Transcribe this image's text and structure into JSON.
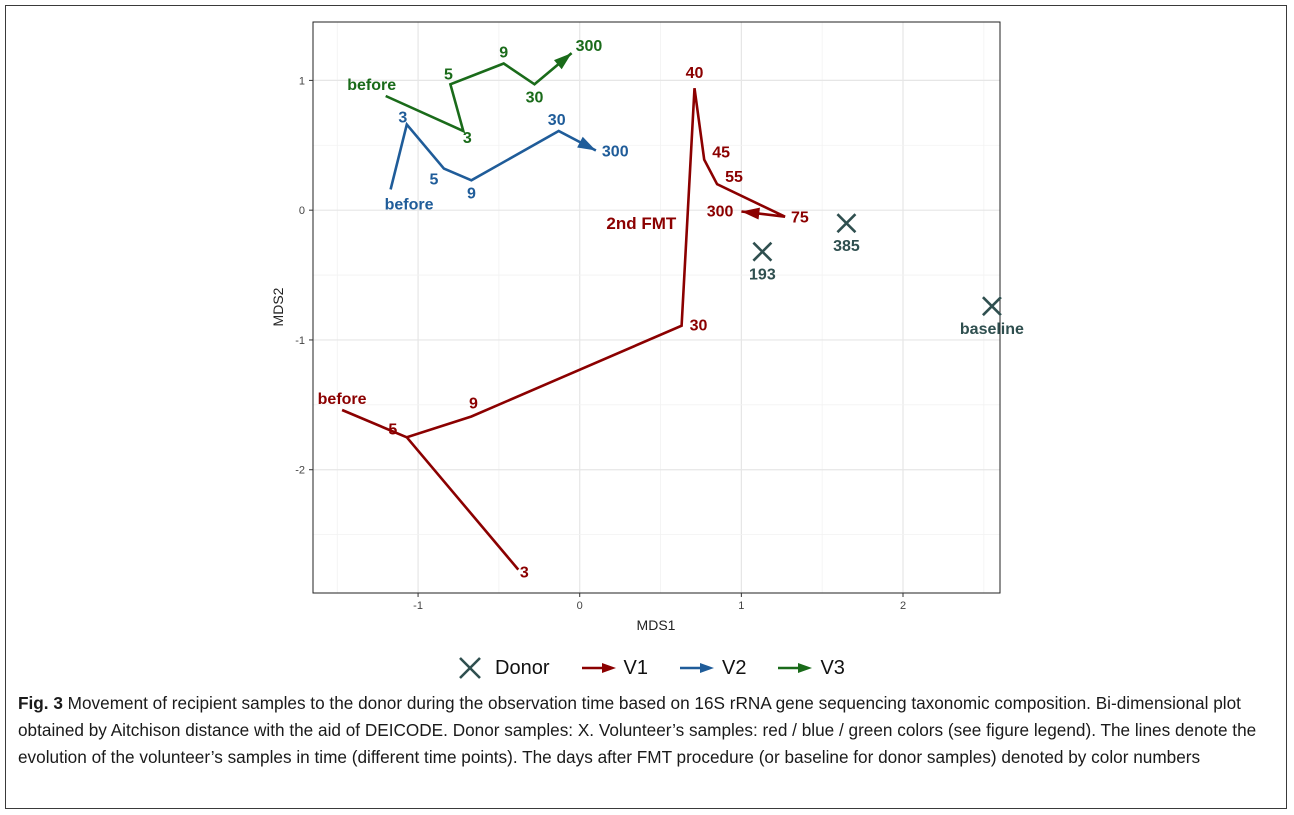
{
  "chart_data": {
    "type": "line",
    "xlabel": "MDS1",
    "ylabel": "MDS2",
    "xlim": [
      -1.65,
      2.6
    ],
    "ylim": [
      -2.95,
      1.45
    ],
    "x_ticks": [
      -1,
      0,
      1,
      2
    ],
    "x_tick_labels": [
      "-1",
      "0",
      "1",
      "2"
    ],
    "y_ticks": [
      -2,
      -1,
      0,
      1
    ],
    "y_tick_labels": [
      "-2",
      "-1",
      "0",
      "1"
    ],
    "grid": true,
    "legend_position": "bottom",
    "colors": {
      "V1": "#8B0000",
      "V2": "#1F5C99",
      "V3": "#1A6B1A",
      "Donor": "#2F4F4F"
    },
    "series": [
      {
        "name": "V1",
        "points": [
          {
            "x": -1.47,
            "y": -1.54,
            "label": "before"
          },
          {
            "x": -1.07,
            "y": -1.75,
            "label": "5"
          },
          {
            "x": -0.38,
            "y": -2.77,
            "label": "3"
          },
          {
            "x": -1.07,
            "y": -1.75,
            "label": ""
          },
          {
            "x": -0.67,
            "y": -1.59,
            "label": "9"
          },
          {
            "x": 0.63,
            "y": -0.89,
            "label": "30"
          },
          {
            "x": 0.71,
            "y": 0.94,
            "label": "40"
          },
          {
            "x": 0.77,
            "y": 0.39,
            "label": "45"
          },
          {
            "x": 0.85,
            "y": 0.2,
            "label": "55"
          },
          {
            "x": 1.27,
            "y": -0.05,
            "label": "75"
          },
          {
            "x": 1.0,
            "y": -0.01,
            "label": "300"
          }
        ]
      },
      {
        "name": "V2",
        "points": [
          {
            "x": -1.17,
            "y": 0.16,
            "label": "before"
          },
          {
            "x": -1.07,
            "y": 0.66,
            "label": "3"
          },
          {
            "x": -0.84,
            "y": 0.32,
            "label": "5"
          },
          {
            "x": -0.67,
            "y": 0.23,
            "label": "9"
          },
          {
            "x": -0.13,
            "y": 0.61,
            "label": "30"
          },
          {
            "x": 0.1,
            "y": 0.46,
            "label": "300"
          }
        ]
      },
      {
        "name": "V3",
        "points": [
          {
            "x": -1.2,
            "y": 0.88,
            "label": "before"
          },
          {
            "x": -0.72,
            "y": 0.61,
            "label": "3"
          },
          {
            "x": -0.8,
            "y": 0.97,
            "label": "5"
          },
          {
            "x": -0.47,
            "y": 1.13,
            "label": "9"
          },
          {
            "x": -0.28,
            "y": 0.97,
            "label": "30"
          },
          {
            "x": -0.05,
            "y": 1.21,
            "label": "300"
          }
        ]
      },
      {
        "name": "Donor",
        "points": [
          {
            "x": 1.13,
            "y": -0.32,
            "label": "193"
          },
          {
            "x": 1.65,
            "y": -0.1,
            "label": "385"
          },
          {
            "x": 2.55,
            "y": -0.74,
            "label": "baseline"
          }
        ]
      }
    ],
    "annotations": [
      {
        "text": "2nd FMT",
        "x": 0.35,
        "y": -0.1
      }
    ]
  },
  "legend": {
    "items": [
      {
        "label": "Donor",
        "key": "cross"
      },
      {
        "label": "V1",
        "key": "arrow"
      },
      {
        "label": "V2",
        "key": "arrow"
      },
      {
        "label": "V3",
        "key": "arrow"
      }
    ]
  },
  "caption": {
    "fig_label": "Fig. 3",
    "text": "Movement of recipient samples to the donor during the observation time based on 16S rRNA gene sequencing taxonomic composition. Bi-dimensional plot obtained by Aitchison distance with the aid of DEICODE. Donor samples: X. Volunteer’s samples: red / blue / green colors (see figure legend). The lines denote the evolution of the volunteer’s samples in time (different time points). The days after FMT procedure (or baseline for donor samples) denoted by color numbers"
  }
}
